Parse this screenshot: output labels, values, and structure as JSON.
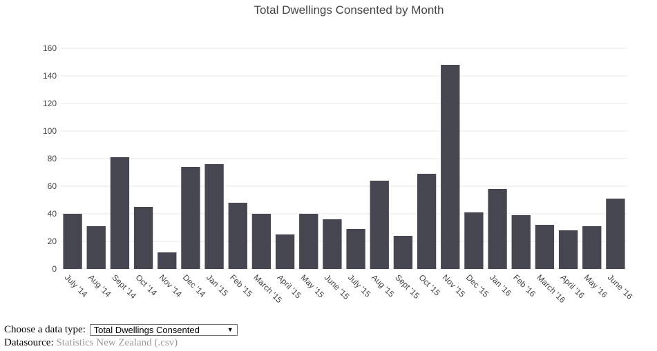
{
  "chart_data": {
    "type": "bar",
    "title": "Total Dwellings Consented by Month",
    "xlabel": "",
    "ylabel": "",
    "categories": [
      "July '14",
      "Aug '14",
      "Sept '14",
      "Oct '14",
      "Nov '14",
      "Dec '14",
      "Jan '15",
      "Feb '15",
      "March '15",
      "April '15",
      "May '15",
      "June '15",
      "July '15",
      "Aug '15",
      "Sept '15",
      "Oct '15",
      "Nov '15",
      "Dec '15",
      "Jan '16",
      "Feb '16",
      "March '16",
      "April '16",
      "May '16",
      "June '16"
    ],
    "values": [
      40,
      31,
      81,
      45,
      12,
      74,
      76,
      48,
      40,
      25,
      40,
      36,
      29,
      64,
      24,
      69,
      148,
      41,
      58,
      39,
      32,
      28,
      31,
      51
    ],
    "ylim": [
      0,
      160
    ],
    "yticks": [
      0,
      20,
      40,
      60,
      80,
      100,
      120,
      140,
      160
    ],
    "grid": true,
    "bar_color": "#464650",
    "grid_color": "#e8e8e8",
    "text_color": "#444444"
  },
  "controls": {
    "choose_label": "Choose a data type:",
    "selected_option": "Total Dwellings Consented",
    "datasource_label": "Datasource:",
    "datasource_link": "Statistics New Zealand (.csv)"
  }
}
